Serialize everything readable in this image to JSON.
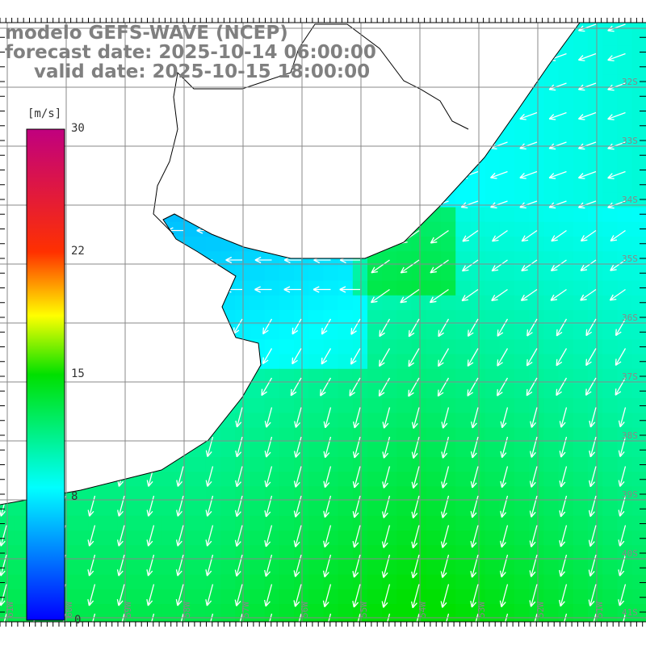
{
  "title": {
    "model": "modelo GEFS-WAVE (NCEP)",
    "forecast": "forecast date: 2025-10-14 06:00:00",
    "valid": "valid date: 2025-10-15 18:00:00"
  },
  "colorbar": {
    "unit": "[m/s]",
    "ticks": [
      "30",
      "22",
      "15",
      "8",
      "0"
    ],
    "tick_values": [
      30,
      22,
      15,
      8,
      0
    ],
    "min": 0,
    "max": 30,
    "colors": [
      "#0000ff",
      "#00ffff",
      "#00e000",
      "#ffff00",
      "#ff0000",
      "#c0007f"
    ]
  },
  "axes": {
    "lon_labels": [
      "61W",
      "60W",
      "59W",
      "58W",
      "57W",
      "56W",
      "55W",
      "54W",
      "53W",
      "52W",
      "51W"
    ],
    "lat_labels": [
      "32S",
      "33S",
      "34S",
      "35S",
      "36S",
      "37S",
      "38S",
      "39S",
      "40S",
      "41S"
    ]
  }
}
